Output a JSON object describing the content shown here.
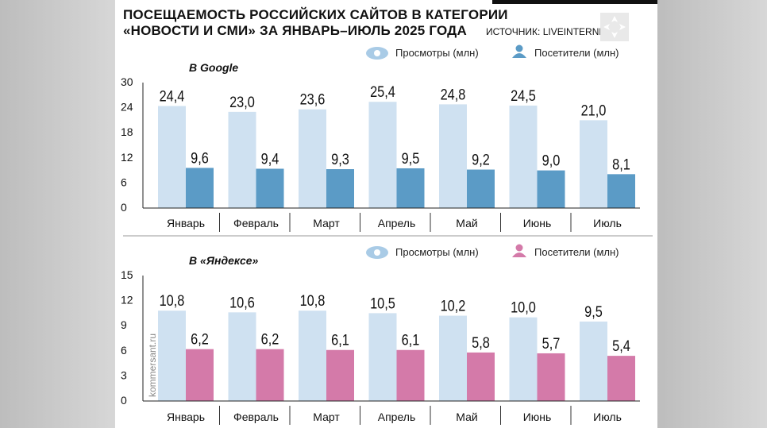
{
  "header": {
    "title_line1": "ПОСЕЩАЕМОСТЬ РОССИЙСКИХ САЙТОВ В КАТЕГОРИИ",
    "title_line2": "«НОВОСТИ И СМИ» ЗА ЯНВАРЬ–ИЮЛЬ 2025 ГОДА",
    "source": "ИСТОЧНИК: LIVEINTERNET."
  },
  "watermark": "kommersant.ru",
  "colors": {
    "views": "#cfe1f1",
    "google_visitors": "#5b9bc6",
    "yandex_visitors": "#d47aa9",
    "axis": "#222222",
    "views_icon": "#a9cbe6"
  },
  "chart_data": [
    {
      "type": "bar",
      "title": "В Google",
      "categories": [
        "Январь",
        "Февраль",
        "Март",
        "Апрель",
        "Май",
        "Июнь",
        "Июль"
      ],
      "series": [
        {
          "name": "Просмотры (млн)",
          "values": [
            24.4,
            23.0,
            23.6,
            25.4,
            24.8,
            24.5,
            21.0
          ],
          "labels": [
            "24,4",
            "23,0",
            "23,6",
            "25,4",
            "24,8",
            "24,5",
            "21,0"
          ],
          "icon": "eye-icon"
        },
        {
          "name": "Посетители (млн)",
          "values": [
            9.6,
            9.4,
            9.3,
            9.5,
            9.2,
            9.0,
            8.1
          ],
          "labels": [
            "9,6",
            "9,4",
            "9,3",
            "9,5",
            "9,2",
            "9,0",
            "8,1"
          ],
          "icon": "person-icon"
        }
      ],
      "yticks": [
        "0",
        "6",
        "12",
        "18",
        "24",
        "30"
      ],
      "ylim": [
        0,
        30
      ],
      "legend_position": "top-right"
    },
    {
      "type": "bar",
      "title": "В «Яндексе»",
      "categories": [
        "Январь",
        "Февраль",
        "Март",
        "Апрель",
        "Май",
        "Июнь",
        "Июль"
      ],
      "series": [
        {
          "name": "Просмотры (млн)",
          "values": [
            10.8,
            10.6,
            10.8,
            10.5,
            10.2,
            10.0,
            9.5
          ],
          "labels": [
            "10,8",
            "10,6",
            "10,8",
            "10,5",
            "10,2",
            "10,0",
            "9,5"
          ],
          "icon": "eye-icon"
        },
        {
          "name": "Посетители (млн)",
          "values": [
            6.2,
            6.2,
            6.1,
            6.1,
            5.8,
            5.7,
            5.4
          ],
          "labels": [
            "6,2",
            "6,2",
            "6,1",
            "6,1",
            "5,8",
            "5,7",
            "5,4"
          ],
          "icon": "person-icon"
        }
      ],
      "yticks": [
        "0",
        "3",
        "6",
        "9",
        "12",
        "15"
      ],
      "ylim": [
        0,
        15
      ],
      "legend_position": "top-right"
    }
  ]
}
